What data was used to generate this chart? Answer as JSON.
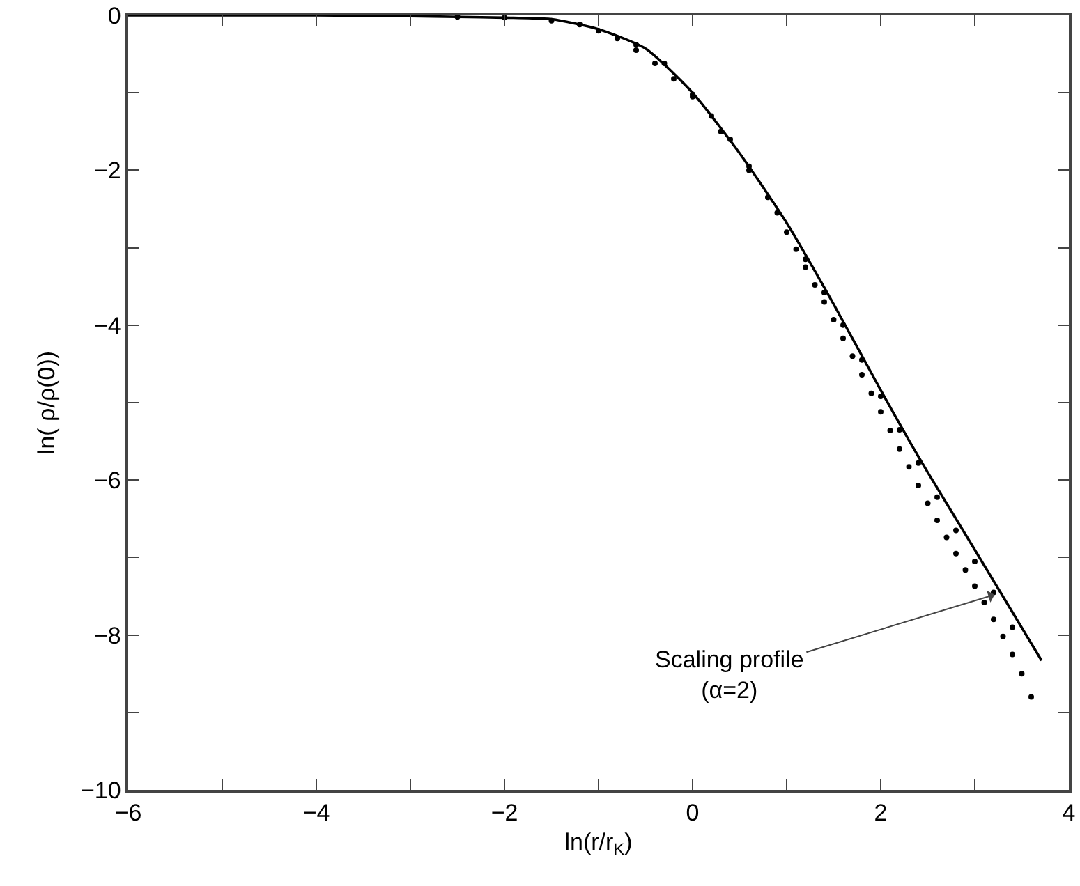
{
  "chart_data": {
    "type": "line",
    "xlabel": "ln(r/r$_{K}$)",
    "ylabel": "ln( ρ/ρ(0))",
    "xlim": [
      -6,
      4
    ],
    "ylim": [
      -10,
      0
    ],
    "xticks": [
      -6,
      {
        "value": -5,
        "label": null
      },
      -4,
      {
        "value": -3,
        "label": null
      },
      -2,
      {
        "value": -1,
        "label": null
      },
      0,
      {
        "value": 1,
        "label": null
      },
      2,
      {
        "value": 3,
        "label": null
      },
      4
    ],
    "yticks": [
      -10,
      {
        "value": -9,
        "label": null
      },
      -8,
      {
        "value": -7,
        "label": null
      },
      -6,
      {
        "value": -5,
        "label": null
      },
      -4,
      {
        "value": -3,
        "label": null
      },
      -2,
      {
        "value": -1,
        "label": null
      },
      0
    ],
    "series": [
      {
        "color": "#000000",
        "x": [
          -6,
          -4,
          -3,
          -2.5,
          -2,
          -1.5,
          -1,
          -0.5,
          0,
          0.5,
          1,
          1.5,
          2,
          2.32,
          2.5,
          3,
          3.71
        ],
        "values": [
          0,
          0,
          -0.01,
          -0.02,
          -0.03,
          -0.05,
          -0.18,
          -0.43,
          -1.0,
          -1.78,
          -2.68,
          -3.73,
          -4.84,
          -5.53,
          -5.9,
          -6.9,
          -8.33
        ]
      },
      {
        "type": "scatter",
        "color": "#000000",
        "x": [
          -2.5,
          -2,
          -1.5,
          -1.2,
          -1,
          -0.8,
          -0.6,
          -0.4,
          -0.2,
          0,
          0.2,
          0.4,
          0.6,
          0.8,
          1,
          1.1,
          1.2,
          1.3,
          1.4,
          1.5,
          1.6,
          1.7,
          1.8,
          1.9,
          2,
          2.1,
          2.2,
          2.3,
          2.4,
          2.5,
          2.6,
          2.7,
          2.8,
          2.9,
          3,
          3.1,
          3.2,
          3.3,
          3.4,
          3.5,
          3.6,
          -0.6,
          -0.3,
          0,
          0.3,
          0.6,
          0.9,
          1.2,
          1.4,
          1.6,
          1.8,
          2,
          2.2,
          2.4,
          2.6,
          2.8,
          3,
          3.2,
          3.4
        ],
        "values": [
          -0.02,
          -0.03,
          -0.07,
          -0.12,
          -0.2,
          -0.3,
          -0.45,
          -0.62,
          -0.82,
          -1.05,
          -1.3,
          -1.6,
          -1.95,
          -2.35,
          -2.8,
          -3.02,
          -3.25,
          -3.48,
          -3.7,
          -3.93,
          -4.17,
          -4.4,
          -4.64,
          -4.88,
          -5.12,
          -5.36,
          -5.6,
          -5.83,
          -6.07,
          -6.3,
          -6.52,
          -6.74,
          -6.95,
          -7.16,
          -7.37,
          -7.58,
          -7.8,
          -8.02,
          -8.25,
          -8.5,
          -8.8,
          -0.38,
          -0.62,
          -1.02,
          -1.5,
          -2.0,
          -2.55,
          -3.15,
          -3.58,
          -4.0,
          -4.45,
          -4.92,
          -5.35,
          -5.78,
          -6.22,
          -6.65,
          -7.05,
          -7.45,
          -7.9
        ]
      }
    ],
    "annotations": [
      {
        "text": "Scaling profile\n(α=2)",
        "x": 3.21,
        "y": -7.48
      }
    ]
  }
}
